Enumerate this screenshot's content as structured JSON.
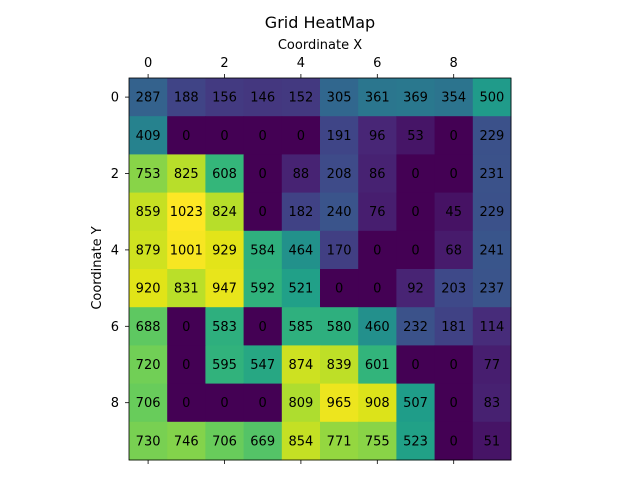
{
  "chart_data": {
    "type": "heatmap",
    "title": "Grid HeatMap",
    "xlabel": "Coordinate X",
    "ylabel": "Coordinate Y",
    "x_ticks": [
      "0",
      "2",
      "4",
      "6",
      "8"
    ],
    "y_ticks": [
      "0",
      "2",
      "4",
      "6",
      "8"
    ],
    "x_tick_values": [
      0,
      2,
      4,
      6,
      8
    ],
    "y_tick_values": [
      0,
      2,
      4,
      6,
      8
    ],
    "xaxis_position": "top",
    "colormap": "viridis",
    "value_range": [
      0,
      1023
    ],
    "grid": false,
    "values": [
      [
        287,
        188,
        156,
        146,
        152,
        305,
        361,
        369,
        354,
        500
      ],
      [
        409,
        0,
        0,
        0,
        0,
        191,
        96,
        53,
        0,
        229
      ],
      [
        753,
        825,
        608,
        0,
        88,
        208,
        86,
        0,
        0,
        231
      ],
      [
        859,
        1023,
        824,
        0,
        182,
        240,
        76,
        0,
        45,
        229
      ],
      [
        879,
        1001,
        929,
        584,
        464,
        170,
        0,
        0,
        68,
        241
      ],
      [
        920,
        831,
        947,
        592,
        521,
        0,
        0,
        92,
        203,
        237
      ],
      [
        688,
        0,
        583,
        0,
        585,
        580,
        460,
        232,
        181,
        114
      ],
      [
        720,
        0,
        595,
        547,
        874,
        839,
        601,
        0,
        0,
        77
      ],
      [
        706,
        0,
        0,
        0,
        809,
        965,
        908,
        507,
        0,
        83
      ],
      [
        730,
        746,
        706,
        669,
        854,
        771,
        755,
        523,
        0,
        51
      ]
    ]
  }
}
